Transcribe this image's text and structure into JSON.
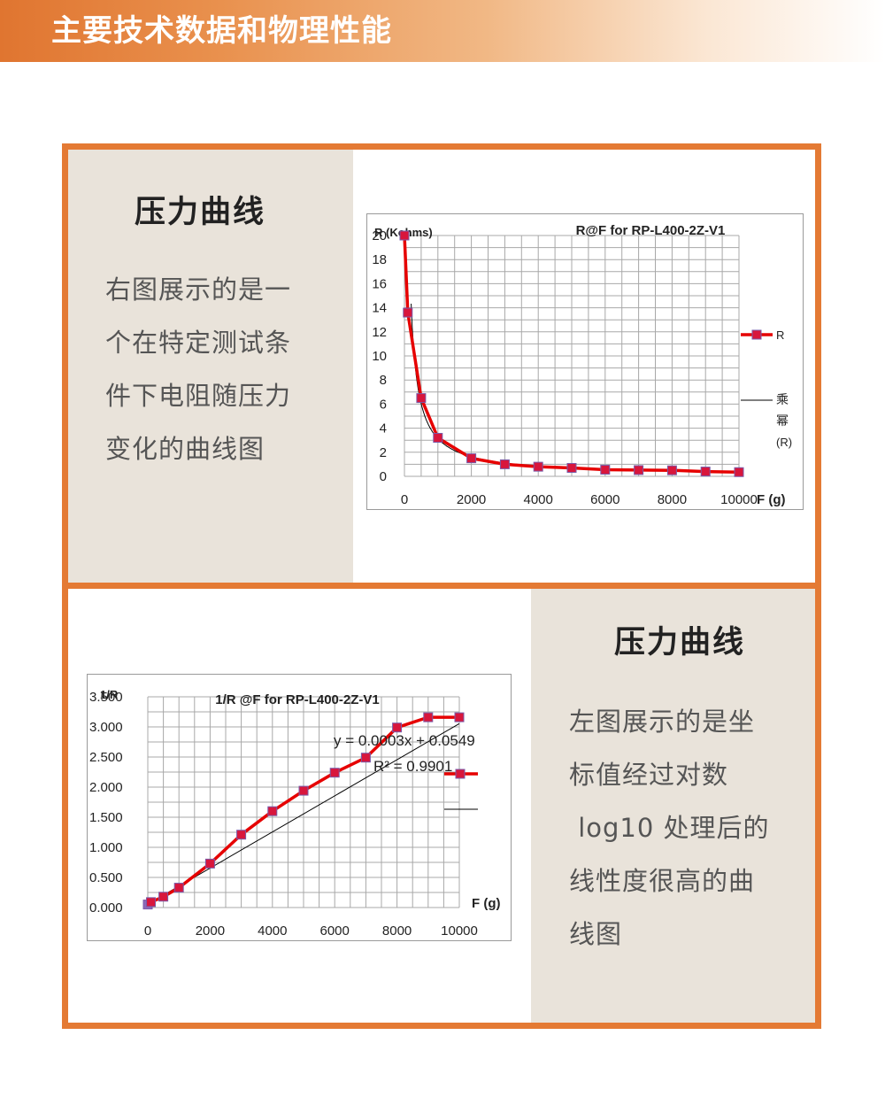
{
  "header": {
    "title": "主要技术数据和物理性能"
  },
  "section_top": {
    "title": "压力曲线",
    "description_lines": [
      "右图展示的是一",
      "个在特定测试条",
      "件下电阻随压力",
      "变化的曲线图"
    ]
  },
  "section_bottom": {
    "title": "压力曲线",
    "description_lines": [
      "左图展示的是坐",
      "标值经过对数",
      " log10 处理后的",
      "线性度很高的曲",
      "线图"
    ]
  },
  "colors": {
    "accent": "#e47a34",
    "panel": "#e9e3da",
    "series_line": "#e60000",
    "marker": "#d8163c",
    "trend": "#000000"
  },
  "chart_data": [
    {
      "type": "line",
      "title": "R@F  for RP-L400-2Z-V1",
      "xlabel": "F (g)",
      "ylabel": "R (Kohms)",
      "xlim": [
        0,
        10000
      ],
      "ylim": [
        0,
        20
      ],
      "x_ticks": [
        "0",
        "2000",
        "4000",
        "6000",
        "8000",
        "10000"
      ],
      "y_ticks": [
        "0",
        "2",
        "4",
        "6",
        "8",
        "10",
        "12",
        "14",
        "16",
        "18",
        "20"
      ],
      "grid": true,
      "legend_position": "right",
      "legend": [
        "R",
        "乘幂(R)"
      ],
      "series": [
        {
          "name": "R",
          "x": [
            0,
            100,
            500,
            1000,
            2000,
            3000,
            4000,
            5000,
            6000,
            7000,
            8000,
            9000,
            10000
          ],
          "values": [
            20.0,
            13.6,
            6.5,
            3.2,
            1.5,
            1.0,
            0.8,
            0.7,
            0.55,
            0.52,
            0.5,
            0.4,
            0.35
          ]
        }
      ],
      "trendline": {
        "name": "乘幂(R)",
        "kind": "power",
        "x_from": 200,
        "x_to": 10000
      }
    },
    {
      "type": "line",
      "title": "1/R @F for RP-L400-2Z-V1",
      "xlabel": "F (g)",
      "ylabel": "1/R",
      "xlim": [
        0,
        10000
      ],
      "ylim": [
        0,
        3.5
      ],
      "x_ticks": [
        "0",
        "2000",
        "4000",
        "6000",
        "8000",
        "10000"
      ],
      "y_ticks": [
        "0.000",
        "0.500",
        "1.000",
        "1.500",
        "2.000",
        "2.500",
        "3.000",
        "3.500"
      ],
      "grid": true,
      "legend_position": "right",
      "series": [
        {
          "name": "",
          "x": [
            0,
            100,
            500,
            1000,
            2000,
            3000,
            4000,
            5000,
            6000,
            7000,
            8000,
            9000,
            10000
          ],
          "values": [
            0.05,
            0.09,
            0.18,
            0.33,
            0.73,
            1.21,
            1.6,
            1.94,
            2.24,
            2.49,
            2.99,
            3.16,
            3.16
          ]
        }
      ],
      "trendline": {
        "kind": "linear",
        "slope": 0.0003,
        "intercept": 0.0549,
        "x_from": 0,
        "x_to": 10000
      },
      "annotations": {
        "equation": "y = 0.0003x + 0.0549",
        "r2": "R² = 0.9901"
      }
    }
  ]
}
